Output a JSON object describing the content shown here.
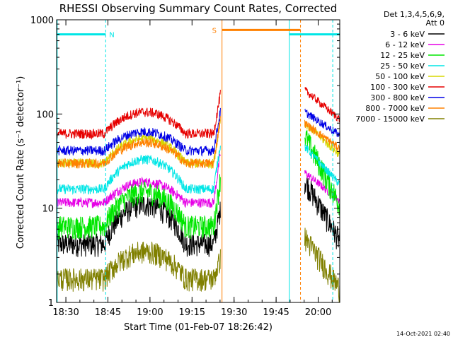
{
  "chart_data": {
    "type": "line",
    "title": "RHESSI Observing Summary Count Rates, Corrected",
    "xlabel": "Start Time (01-Feb-07 18:26:42)",
    "ylabel": "Corrected Count Rate (s⁻¹ detector⁻¹)",
    "yscale": "log",
    "ylim": [
      1,
      1000
    ],
    "xlim_minutes": [
      0,
      101
    ],
    "x_ticks": [
      {
        "minute": 3.3,
        "label": "18:30"
      },
      {
        "minute": 18.3,
        "label": "18:45"
      },
      {
        "minute": 33.3,
        "label": "19:00"
      },
      {
        "minute": 48.3,
        "label": "19:15"
      },
      {
        "minute": 63.3,
        "label": "19:30"
      },
      {
        "minute": 78.3,
        "label": "19:45"
      },
      {
        "minute": 93.3,
        "label": "20:00"
      }
    ],
    "y_ticks": [
      {
        "value": 1,
        "label": "1"
      },
      {
        "value": 10,
        "label": "10"
      },
      {
        "value": 100,
        "label": "100"
      },
      {
        "value": 1000,
        "label": "1000"
      }
    ],
    "legend_header": [
      "Det 1,3,4,5,6,9,",
      "Att 0"
    ],
    "legend_position": "right",
    "series": [
      {
        "name": "3 - 6 keV",
        "color": "#000000",
        "base": 4.2,
        "peak": 11,
        "flare": 10,
        "post_start": 20,
        "post_end": 4.5
      },
      {
        "name": "6 - 12 keV",
        "color": "#e600e6",
        "base": 11.5,
        "peak": 19,
        "flare": 40,
        "post_start": 24,
        "post_end": 12
      },
      {
        "name": "12 - 25 keV",
        "color": "#00e600",
        "base": 6.5,
        "peak": 15,
        "flare": 22,
        "post_start": 60,
        "post_end": 11
      },
      {
        "name": "25 - 50 keV",
        "color": "#00e6e6",
        "base": 16,
        "peak": 33,
        "flare": 50,
        "post_start": 45,
        "post_end": 18
      },
      {
        "name": "50 - 100 keV",
        "color": "#d7d700",
        "base": 30,
        "peak": 55,
        "flare": 90,
        "post_start": 80,
        "post_end": 37
      },
      {
        "name": "100 - 300 keV",
        "color": "#e60000",
        "base": 62,
        "peak": 105,
        "flare": 170,
        "post_start": 180,
        "post_end": 88
      },
      {
        "name": "300 - 800 keV",
        "color": "#0000e6",
        "base": 41,
        "peak": 65,
        "flare": 110,
        "post_start": 105,
        "post_end": 60
      },
      {
        "name": "800 - 7000 keV",
        "color": "#ff8000",
        "base": 30,
        "peak": 50,
        "flare": 95,
        "post_start": 80,
        "post_end": 43
      },
      {
        "name": "7000 - 15000 keV",
        "color": "#808000",
        "base": 1.8,
        "peak": 3.5,
        "flare": 3,
        "post_start": 5,
        "post_end": 1.4
      }
    ],
    "annotations": [
      {
        "label": "N",
        "color": "#00e6e6",
        "x_start": 0,
        "x_end": 17.5,
        "y": 700
      },
      {
        "label": "",
        "color": "#00e6e6",
        "x_start": 83,
        "x_end": 101,
        "y": 700
      },
      {
        "label": "S",
        "color": "#ff8000",
        "x_start": 59,
        "x_end": 87,
        "y": 780
      }
    ],
    "segments": {
      "observed_1": [
        0,
        58.5
      ],
      "gap": [
        58.5,
        88.5
      ],
      "observed_2": [
        88.5,
        101
      ]
    }
  },
  "footer": {
    "timestamp": "14-Oct-2021 02:40"
  }
}
